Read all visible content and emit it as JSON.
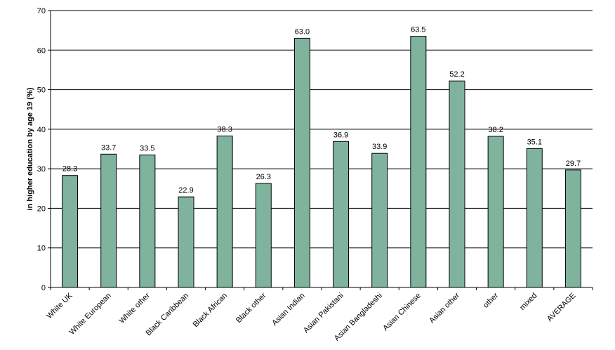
{
  "chart_data": {
    "type": "bar",
    "title": "",
    "xlabel": "",
    "ylabel": "in higher education by age 19 (%)",
    "ylim": [
      0,
      70
    ],
    "yticks": [
      0,
      10,
      20,
      30,
      40,
      50,
      60,
      70
    ],
    "grid": true,
    "legend": "none",
    "bar_color": "#80b39d",
    "categories": [
      "White UK",
      "White European",
      "White other",
      "Black Caribbean",
      "Black African",
      "Black other",
      "Asian Indian",
      "Asian Pakistani",
      "Asian Bangladeshi",
      "Asian Chinese",
      "Asian other",
      "other",
      "mixed",
      "AVERAGE"
    ],
    "values": [
      28.3,
      33.7,
      33.5,
      22.9,
      38.3,
      26.3,
      63.0,
      36.9,
      33.9,
      63.5,
      52.2,
      38.2,
      35.1,
      29.7
    ],
    "value_labels": [
      "28.3",
      "33.7",
      "33.5",
      "22.9",
      "38.3",
      "26.3",
      "63.0",
      "36.9",
      "33.9",
      "63.5",
      "52.2",
      "38.2",
      "35.1",
      "29.7"
    ]
  }
}
